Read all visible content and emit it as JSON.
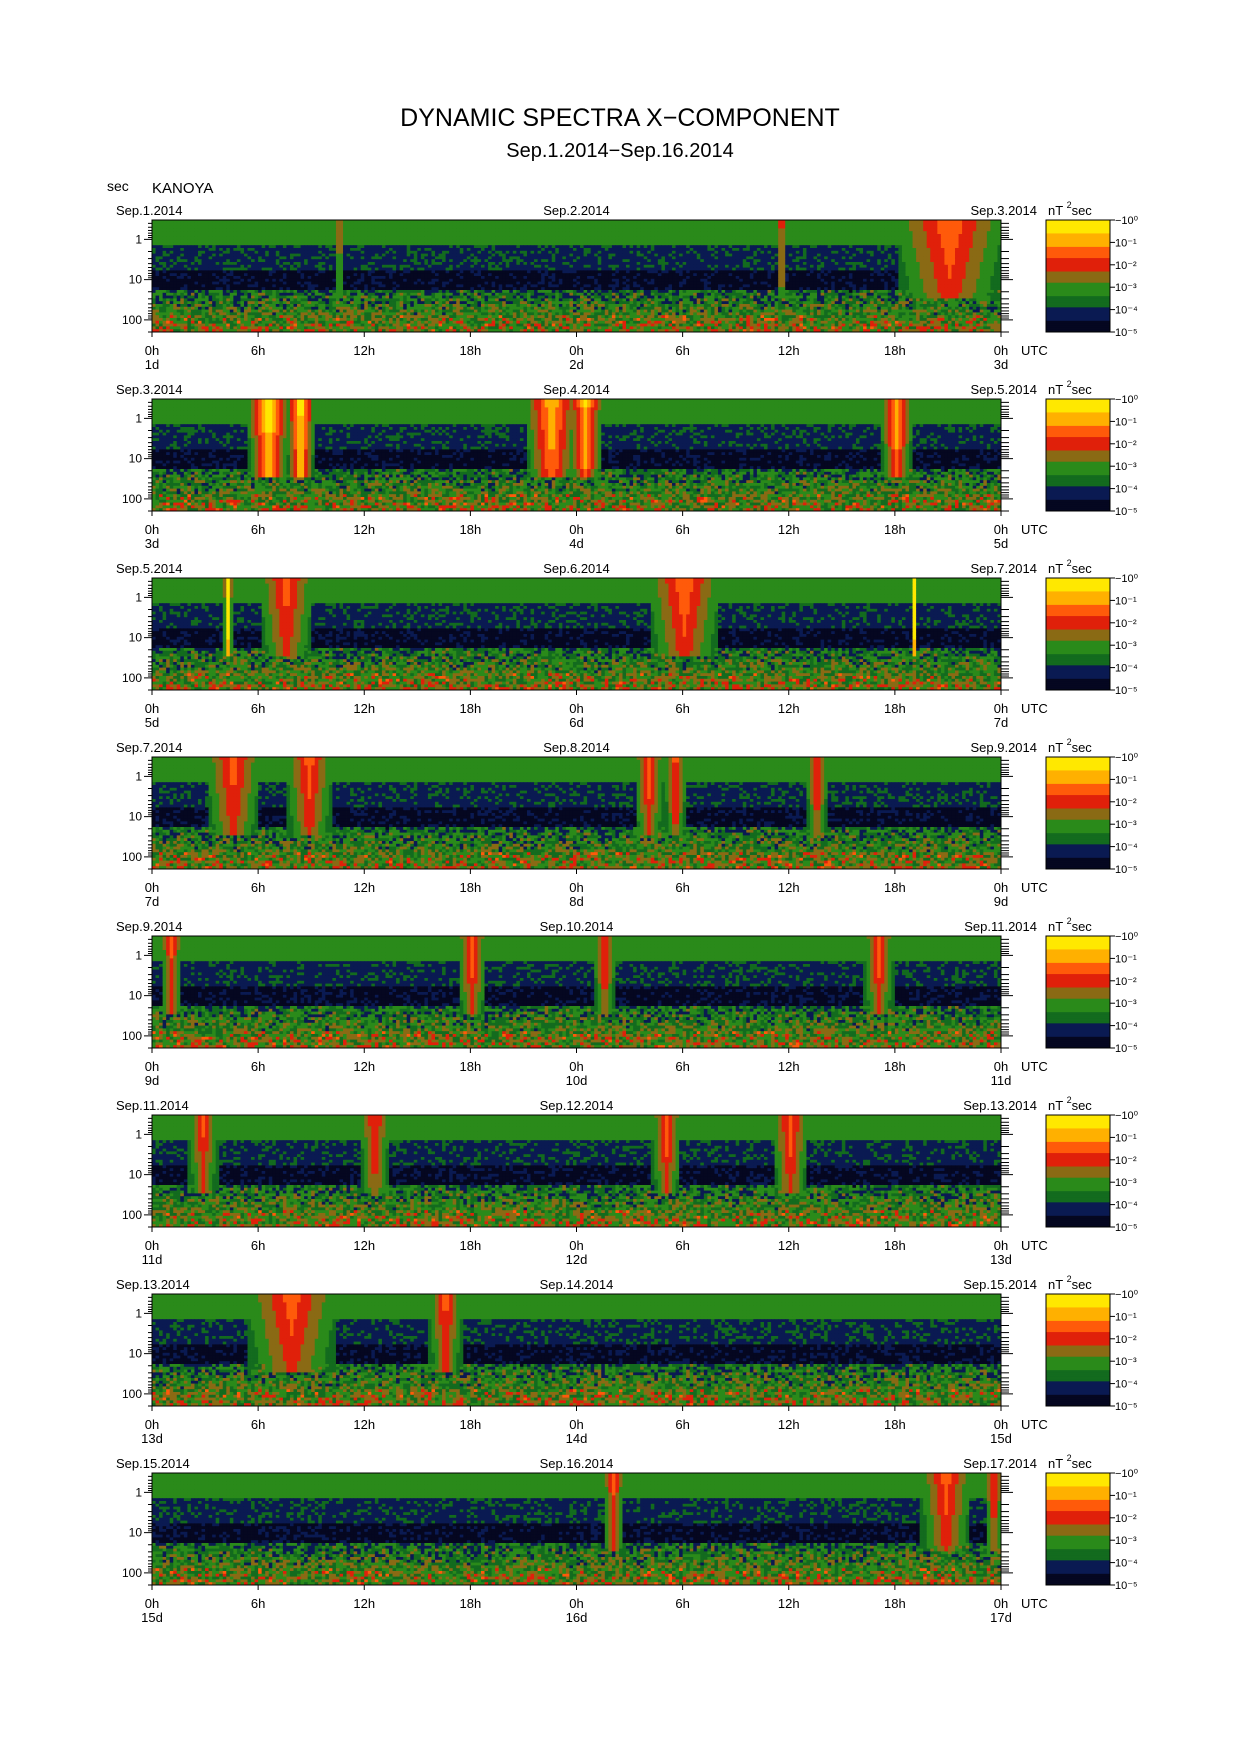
{
  "figure": {
    "title": "DYNAMIC SPECTRA X−COMPONENT",
    "subtitle": "Sep.1.2014−Sep.16.2014",
    "y_unit": "sec",
    "station": "KANOYA",
    "utc_label": "UTC",
    "colorbar_unit_base": "nT",
    "colorbar_unit_exp": "2",
    "colorbar_unit_tail": "sec",
    "colors": {
      "scale": [
        "#050720",
        "#0a1a52",
        "#136b1e",
        "#2a8a1a",
        "#8a6a14",
        "#e0200a",
        "#ff5a0a",
        "#ffb000",
        "#ffe800"
      ]
    }
  },
  "chart_data": [
    {
      "type": "heatmap",
      "date_left": "Sep.1.2014",
      "date_mid": "Sep.2.2014",
      "date_right": "Sep.3.2014",
      "x_ticks": [
        "0h",
        "6h",
        "12h",
        "18h",
        "0h",
        "6h",
        "12h",
        "18h",
        "0h"
      ],
      "day_labels": [
        "1d",
        "2d",
        "3d"
      ],
      "y_ticks": [
        "1",
        "10",
        "100"
      ],
      "ylim": [
        0.33,
        200
      ],
      "y_scale": "log",
      "cbar_ticks": [
        "−10⁰",
        "10⁻¹",
        "10⁻²",
        "10⁻³",
        "10⁻⁴",
        "10⁻⁵"
      ],
      "events": [
        {
          "t": 10.5,
          "width": 0.15,
          "int": 0.7
        },
        {
          "t": 35.5,
          "width": 0.15,
          "int": 1.0
        },
        {
          "t": 45.0,
          "width": 3.0,
          "int": 0.65
        }
      ]
    },
    {
      "type": "heatmap",
      "date_left": "Sep.3.2014",
      "date_mid": "Sep.4.2014",
      "date_right": "Sep.5.2014",
      "x_ticks": [
        "0h",
        "6h",
        "12h",
        "18h",
        "0h",
        "6h",
        "12h",
        "18h",
        "0h"
      ],
      "day_labels": [
        "3d",
        "4d",
        "5d"
      ],
      "y_ticks": [
        "1",
        "10",
        "100"
      ],
      "ylim": [
        0.33,
        200
      ],
      "y_scale": "log",
      "cbar_ticks": [
        "−10⁰",
        "10⁻¹",
        "10⁻²",
        "10⁻³",
        "10⁻⁴",
        "10⁻⁵"
      ],
      "events": [
        {
          "t": 6.5,
          "width": 1.2,
          "int": 1.0
        },
        {
          "t": 8.3,
          "width": 0.8,
          "int": 1.0
        },
        {
          "t": 22.5,
          "width": 1.5,
          "int": 0.85
        },
        {
          "t": 24.4,
          "width": 1.0,
          "int": 0.85
        },
        {
          "t": 42.0,
          "width": 0.9,
          "int": 0.8
        }
      ]
    },
    {
      "type": "heatmap",
      "date_left": "Sep.5.2014",
      "date_mid": "Sep.6.2014",
      "date_right": "Sep.7.2014",
      "x_ticks": [
        "0h",
        "6h",
        "12h",
        "18h",
        "0h",
        "6h",
        "12h",
        "18h",
        "0h"
      ],
      "day_labels": [
        "5d",
        "6d",
        "7d"
      ],
      "y_ticks": [
        "1",
        "10",
        "100"
      ],
      "ylim": [
        0.33,
        200
      ],
      "y_scale": "log",
      "cbar_ticks": [
        "−10⁰",
        "10⁻¹",
        "10⁻²",
        "10⁻³",
        "10⁻⁴",
        "10⁻⁵"
      ],
      "events": [
        {
          "t": 4.2,
          "width": 0.25,
          "int": 1.0
        },
        {
          "t": 7.5,
          "width": 1.5,
          "int": 0.6
        },
        {
          "t": 30.0,
          "width": 2.0,
          "int": 0.65
        },
        {
          "t": 43.0,
          "width": 0.15,
          "int": 1.0
        }
      ]
    },
    {
      "type": "heatmap",
      "date_left": "Sep.7.2014",
      "date_mid": "Sep.8.2014",
      "date_right": "Sep.9.2014",
      "x_ticks": [
        "0h",
        "6h",
        "12h",
        "18h",
        "0h",
        "6h",
        "12h",
        "18h",
        "0h"
      ],
      "day_labels": [
        "7d",
        "8d",
        "9d"
      ],
      "y_ticks": [
        "1",
        "10",
        "100"
      ],
      "ylim": [
        0.33,
        200
      ],
      "y_scale": "log",
      "cbar_ticks": [
        "−10⁰",
        "10⁻¹",
        "10⁻²",
        "10⁻³",
        "10⁻⁴",
        "10⁻⁵"
      ],
      "events": [
        {
          "t": 4.5,
          "width": 1.5,
          "int": 0.6
        },
        {
          "t": 8.8,
          "width": 1.3,
          "int": 0.6
        },
        {
          "t": 28.0,
          "width": 0.8,
          "int": 0.6
        },
        {
          "t": 29.5,
          "width": 0.6,
          "int": 0.6
        },
        {
          "t": 37.5,
          "width": 0.6,
          "int": 0.55
        }
      ]
    },
    {
      "type": "heatmap",
      "date_left": "Sep.9.2014",
      "date_mid": "Sep.10.2014",
      "date_right": "Sep.11.2014",
      "x_ticks": [
        "0h",
        "6h",
        "12h",
        "18h",
        "0h",
        "6h",
        "12h",
        "18h",
        "0h"
      ],
      "day_labels": [
        "9d",
        "10d",
        "11d"
      ],
      "y_ticks": [
        "1",
        "10",
        "100"
      ],
      "ylim": [
        0.33,
        200
      ],
      "y_scale": "log",
      "cbar_ticks": [
        "−10⁰",
        "10⁻¹",
        "10⁻²",
        "10⁻³",
        "10⁻⁴",
        "10⁻⁵"
      ],
      "events": [
        {
          "t": 1.0,
          "width": 0.6,
          "int": 0.55
        },
        {
          "t": 18.0,
          "width": 0.8,
          "int": 0.6
        },
        {
          "t": 25.5,
          "width": 0.6,
          "int": 0.55
        },
        {
          "t": 41.0,
          "width": 0.8,
          "int": 0.6
        }
      ]
    },
    {
      "type": "heatmap",
      "date_left": "Sep.11.2014",
      "date_mid": "Sep.12.2014",
      "date_right": "Sep.13.2014",
      "x_ticks": [
        "0h",
        "6h",
        "12h",
        "18h",
        "0h",
        "6h",
        "12h",
        "18h",
        "0h"
      ],
      "day_labels": [
        "11d",
        "12d",
        "13d"
      ],
      "y_ticks": [
        "1",
        "10",
        "100"
      ],
      "ylim": [
        0.33,
        200
      ],
      "y_scale": "log",
      "cbar_ticks": [
        "−10⁰",
        "10⁻¹",
        "10⁻²",
        "10⁻³",
        "10⁻⁴",
        "10⁻⁵"
      ],
      "events": [
        {
          "t": 2.8,
          "width": 0.8,
          "int": 0.55
        },
        {
          "t": 12.5,
          "width": 0.8,
          "int": 0.55
        },
        {
          "t": 29.0,
          "width": 0.8,
          "int": 0.6
        },
        {
          "t": 36.0,
          "width": 1.0,
          "int": 0.6
        }
      ]
    },
    {
      "type": "heatmap",
      "date_left": "Sep.13.2014",
      "date_mid": "Sep.14.2014",
      "date_right": "Sep.15.2014",
      "x_ticks": [
        "0h",
        "6h",
        "12h",
        "18h",
        "0h",
        "6h",
        "12h",
        "18h",
        "0h"
      ],
      "day_labels": [
        "13d",
        "14d",
        "15d"
      ],
      "y_ticks": [
        "1",
        "10",
        "100"
      ],
      "ylim": [
        0.33,
        200
      ],
      "y_scale": "log",
      "cbar_ticks": [
        "−10⁰",
        "10⁻¹",
        "10⁻²",
        "10⁻³",
        "10⁻⁴",
        "10⁻⁵"
      ],
      "events": [
        {
          "t": 7.8,
          "width": 2.5,
          "int": 0.6
        },
        {
          "t": 16.5,
          "width": 0.9,
          "int": 0.6
        }
      ]
    },
    {
      "type": "heatmap",
      "date_left": "Sep.15.2014",
      "date_mid": "Sep.16.2014",
      "date_right": "Sep.17.2014",
      "x_ticks": [
        "0h",
        "6h",
        "12h",
        "18h",
        "0h",
        "6h",
        "12h",
        "18h",
        "0h"
      ],
      "day_labels": [
        "15d",
        "16d",
        "17d"
      ],
      "y_ticks": [
        "1",
        "10",
        "100"
      ],
      "ylim": [
        0.33,
        200
      ],
      "y_scale": "log",
      "cbar_ticks": [
        "−10⁰",
        "10⁻¹",
        "10⁻²",
        "10⁻³",
        "10⁻⁴",
        "10⁻⁵"
      ],
      "events": [
        {
          "t": 26.0,
          "width": 0.6,
          "int": 0.55
        },
        {
          "t": 44.8,
          "width": 1.4,
          "int": 0.6
        },
        {
          "t": 47.5,
          "width": 0.5,
          "int": 0.55
        }
      ]
    }
  ]
}
